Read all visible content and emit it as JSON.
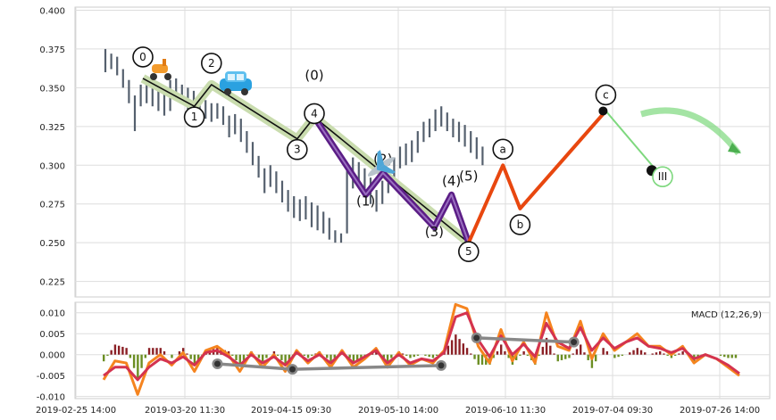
{
  "chart_data": [
    {
      "type": "line",
      "panel": "price",
      "ylim": [
        0.215,
        0.402
      ],
      "y_ticks": [
        "0.225",
        "0.250",
        "0.275",
        "0.300",
        "0.325",
        "0.350",
        "0.375",
        "0.400"
      ],
      "grid": true,
      "candles": [
        {
          "t": 0,
          "low": 0.36,
          "high": 0.375
        },
        {
          "t": 1,
          "low": 0.362,
          "high": 0.372
        },
        {
          "t": 2,
          "low": 0.358,
          "high": 0.37
        },
        {
          "t": 3,
          "low": 0.35,
          "high": 0.362
        },
        {
          "t": 4,
          "low": 0.34,
          "high": 0.355
        },
        {
          "t": 5,
          "low": 0.322,
          "high": 0.345
        },
        {
          "t": 6,
          "low": 0.338,
          "high": 0.352
        },
        {
          "t": 7,
          "low": 0.34,
          "high": 0.355
        },
        {
          "t": 8,
          "low": 0.338,
          "high": 0.35
        },
        {
          "t": 9,
          "low": 0.335,
          "high": 0.348
        },
        {
          "t": 10,
          "low": 0.332,
          "high": 0.346
        },
        {
          "t": 11,
          "low": 0.335,
          "high": 0.355
        },
        {
          "t": 12,
          "low": 0.342,
          "high": 0.356
        },
        {
          "t": 13,
          "low": 0.34,
          "high": 0.352
        },
        {
          "t": 14,
          "low": 0.336,
          "high": 0.35
        },
        {
          "t": 15,
          "low": 0.334,
          "high": 0.348
        },
        {
          "t": 16,
          "low": 0.333,
          "high": 0.346
        },
        {
          "t": 17,
          "low": 0.33,
          "high": 0.342
        },
        {
          "t": 18,
          "low": 0.328,
          "high": 0.34
        },
        {
          "t": 19,
          "low": 0.33,
          "high": 0.34
        },
        {
          "t": 20,
          "low": 0.326,
          "high": 0.338
        },
        {
          "t": 21,
          "low": 0.318,
          "high": 0.332
        },
        {
          "t": 22,
          "low": 0.32,
          "high": 0.333
        },
        {
          "t": 23,
          "low": 0.315,
          "high": 0.33
        },
        {
          "t": 24,
          "low": 0.308,
          "high": 0.322
        },
        {
          "t": 25,
          "low": 0.3,
          "high": 0.315
        },
        {
          "t": 26,
          "low": 0.292,
          "high": 0.306
        },
        {
          "t": 27,
          "low": 0.282,
          "high": 0.298
        },
        {
          "t": 28,
          "low": 0.286,
          "high": 0.3
        },
        {
          "t": 29,
          "low": 0.282,
          "high": 0.296
        },
        {
          "t": 30,
          "low": 0.276,
          "high": 0.29
        },
        {
          "t": 31,
          "low": 0.27,
          "high": 0.284
        },
        {
          "t": 32,
          "low": 0.266,
          "high": 0.28
        },
        {
          "t": 33,
          "low": 0.264,
          "high": 0.278
        },
        {
          "t": 34,
          "low": 0.265,
          "high": 0.28
        },
        {
          "t": 35,
          "low": 0.26,
          "high": 0.276
        },
        {
          "t": 36,
          "low": 0.258,
          "high": 0.274
        },
        {
          "t": 37,
          "low": 0.256,
          "high": 0.27
        },
        {
          "t": 38,
          "low": 0.252,
          "high": 0.266
        },
        {
          "t": 39,
          "low": 0.25,
          "high": 0.258
        },
        {
          "t": 40,
          "low": 0.25,
          "high": 0.256
        },
        {
          "t": 41,
          "low": 0.256,
          "high": 0.302
        },
        {
          "t": 42,
          "low": 0.285,
          "high": 0.305
        },
        {
          "t": 43,
          "low": 0.288,
          "high": 0.302
        },
        {
          "t": 44,
          "low": 0.282,
          "high": 0.298
        },
        {
          "t": 45,
          "low": 0.275,
          "high": 0.292
        },
        {
          "t": 46,
          "low": 0.27,
          "high": 0.284
        },
        {
          "t": 47,
          "low": 0.275,
          "high": 0.29
        },
        {
          "t": 48,
          "low": 0.282,
          "high": 0.298
        },
        {
          "t": 49,
          "low": 0.29,
          "high": 0.305
        },
        {
          "t": 50,
          "low": 0.298,
          "high": 0.312
        },
        {
          "t": 51,
          "low": 0.3,
          "high": 0.314
        },
        {
          "t": 52,
          "low": 0.302,
          "high": 0.316
        },
        {
          "t": 53,
          "low": 0.308,
          "high": 0.322
        },
        {
          "t": 54,
          "low": 0.315,
          "high": 0.328
        },
        {
          "t": 55,
          "low": 0.318,
          "high": 0.33
        },
        {
          "t": 56,
          "low": 0.322,
          "high": 0.336
        },
        {
          "t": 57,
          "low": 0.325,
          "high": 0.338
        },
        {
          "t": 58,
          "low": 0.322,
          "high": 0.334
        },
        {
          "t": 59,
          "low": 0.318,
          "high": 0.33
        },
        {
          "t": 60,
          "low": 0.315,
          "high": 0.328
        },
        {
          "t": 61,
          "low": 0.312,
          "high": 0.326
        },
        {
          "t": 62,
          "low": 0.308,
          "high": 0.322
        },
        {
          "t": 63,
          "low": 0.304,
          "high": 0.318
        },
        {
          "t": 64,
          "low": 0.3,
          "high": 0.312
        }
      ],
      "waves": [
        {
          "id": "primary-impulse",
          "color": "#111111",
          "halo": "#c9dcae",
          "points": [
            [
              0,
              0.356,
              "0"
            ],
            [
              3,
              0.338,
              "1"
            ],
            [
              4,
              0.352,
              "2"
            ],
            [
              9,
              0.317,
              "3"
            ],
            [
              10,
              0.331,
              "4"
            ],
            [
              19,
              0.25,
              "5"
            ]
          ]
        },
        {
          "id": "sub-wave",
          "color": "#5b1d86",
          "halo": "",
          "points": [
            [
              10,
              0.331,
              ""
            ],
            [
              13,
              0.281,
              "(1)"
            ],
            [
              14,
              0.295,
              "(2)"
            ],
            [
              17,
              0.26,
              "(3)"
            ],
            [
              18,
              0.281,
              "(4)"
            ],
            [
              19,
              0.25,
              ""
            ]
          ]
        },
        {
          "id": "correction",
          "color": "#e8470f",
          "halo": "",
          "points": [
            [
              19,
              0.25,
              ""
            ],
            [
              21,
              0.3,
              "a"
            ],
            [
              22,
              0.272,
              "b"
            ],
            [
              27,
              0.335,
              "c"
            ]
          ]
        },
        {
          "id": "projection",
          "color": "#7ed87e",
          "halo": "",
          "points": [
            [
              27,
              0.335,
              ""
            ],
            [
              30,
              0.296,
              "III"
            ]
          ]
        }
      ],
      "wave_labels": [
        {
          "text": "(0)",
          "t": 10,
          "y": 0.355
        },
        {
          "text": "(5)",
          "t": 19,
          "y": 0.29
        },
        {
          "text": "(1)",
          "t": 13,
          "y": 0.274
        },
        {
          "text": "(2)",
          "t": 14,
          "y": 0.301
        },
        {
          "text": "(3)",
          "t": 17,
          "y": 0.254
        },
        {
          "text": "(4)",
          "t": 18,
          "y": 0.287
        }
      ]
    },
    {
      "type": "line",
      "panel": "macd",
      "title": "MACD (12,26,9)",
      "ylim": [
        -0.0105,
        0.0125
      ],
      "y_ticks": [
        "0.010",
        "0.005",
        "0.000",
        "-0.005",
        "-0.010"
      ],
      "x_ticks": [
        "2019-02-25 14:00",
        "2019-03-20 11:30",
        "2019-04-15 09:30",
        "2019-05-10 14:00",
        "2019-06-10 11:30",
        "2019-07-04 09:30",
        "2019-07-26 14:00"
      ],
      "series": [
        {
          "color": "#f5841f",
          "values": [
            -0.006,
            -0.0015,
            -0.002,
            -0.0095,
            -0.002,
            0.0,
            -0.0025,
            0.0005,
            -0.004,
            0.001,
            0.002,
            0.0,
            -0.004,
            0.0005,
            -0.003,
            0.0,
            -0.004,
            0.001,
            -0.002,
            0.0005,
            -0.003,
            0.001,
            -0.003,
            -0.001,
            0.0015,
            -0.003,
            0.0005,
            -0.0025,
            -0.001,
            -0.002,
            0.001,
            0.012,
            0.011,
            0.002,
            -0.002,
            0.006,
            -0.0015,
            0.003,
            -0.002,
            0.01,
            0.002,
            0.001,
            0.008,
            -0.001,
            0.005,
            0.001,
            0.003,
            0.005,
            0.002,
            0.002,
            0.0,
            0.002,
            -0.002,
            0.0,
            -0.001,
            -0.003,
            -0.005
          ]
        },
        {
          "color": "#d4334f",
          "values": [
            -0.005,
            -0.003,
            -0.003,
            -0.006,
            -0.003,
            -0.001,
            -0.002,
            -0.0005,
            -0.0025,
            0.0005,
            0.001,
            -0.0005,
            -0.0025,
            0.0,
            -0.002,
            -0.0005,
            -0.0025,
            0.0005,
            -0.0015,
            0.0,
            -0.002,
            0.0005,
            -0.002,
            -0.0005,
            0.001,
            -0.002,
            0.0,
            -0.002,
            -0.001,
            -0.0015,
            0.0005,
            0.009,
            0.01,
            0.0035,
            -0.0005,
            0.0045,
            0.0,
            0.0025,
            -0.0005,
            0.0075,
            0.003,
            0.0015,
            0.0065,
            0.001,
            0.004,
            0.0015,
            0.003,
            0.004,
            0.002,
            0.0015,
            0.0005,
            0.0015,
            -0.001,
            0.0,
            -0.001,
            -0.0025,
            -0.0045
          ]
        }
      ],
      "divergence": [
        {
          "color": "#888888",
          "points": [
            [
              0.205,
              -0.0022
            ],
            [
              0.313,
              -0.0035
            ],
            [
              0.527,
              -0.0026
            ]
          ]
        },
        {
          "color": "#888888",
          "points": [
            [
              0.578,
              0.004
            ],
            [
              0.718,
              0.003
            ]
          ]
        }
      ]
    }
  ]
}
